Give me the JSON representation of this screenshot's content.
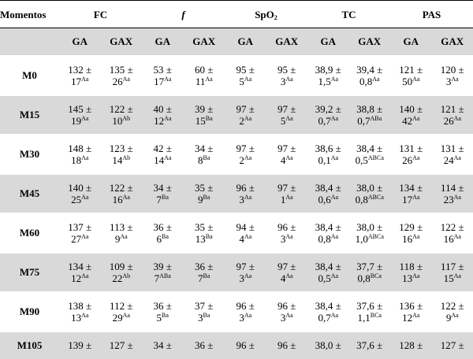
{
  "table": {
    "header": {
      "corner": "Momentos",
      "groups": [
        {
          "text": "FC"
        },
        {
          "text": "f"
        },
        {
          "text": "SpO",
          "sub": "2"
        },
        {
          "text": "TC"
        },
        {
          "text": "PAS"
        }
      ],
      "subheaders": [
        "GA",
        "GAX",
        "GA",
        "GAX",
        "GA",
        "GAX",
        "GA",
        "GAX",
        "GA",
        "GAX"
      ]
    },
    "rows": [
      {
        "label": "M0",
        "cells": [
          [
            "132 ±",
            "17",
            "Aa"
          ],
          [
            "135 ±",
            "26",
            "Aa"
          ],
          [
            "53 ±",
            "17",
            "Aa"
          ],
          [
            "60 ±",
            "11",
            "Aa"
          ],
          [
            "95 ±",
            "5",
            "Aa"
          ],
          [
            "95 ±",
            "3",
            "Aa"
          ],
          [
            "38,9 ±",
            "1,5",
            "Aa"
          ],
          [
            "39,4 ±",
            "0,8",
            "Aa"
          ],
          [
            "121 ±",
            "50",
            "Aa"
          ],
          [
            "120 ±",
            "3",
            "Aa"
          ]
        ]
      },
      {
        "label": "M15",
        "cells": [
          [
            "145 ±",
            "19",
            "Aa"
          ],
          [
            "122 ±",
            "10",
            "Ab"
          ],
          [
            "40 ±",
            "12",
            "Aa"
          ],
          [
            "39 ±",
            "15",
            "Ba"
          ],
          [
            "97 ±",
            "2",
            "Aa"
          ],
          [
            "97 ±",
            "5",
            "Aa"
          ],
          [
            "39,2 ±",
            "0,7",
            "Aa"
          ],
          [
            "38,8 ±",
            "0,7",
            "ABa"
          ],
          [
            "140 ±",
            "42",
            "Aa"
          ],
          [
            "121 ±",
            "26",
            "Aa"
          ]
        ]
      },
      {
        "label": "M30",
        "cells": [
          [
            "148 ±",
            "18",
            "Aa"
          ],
          [
            "123 ±",
            "14",
            "Ab"
          ],
          [
            "42 ±",
            "14",
            "Aa"
          ],
          [
            "34 ±",
            "8",
            "Ba"
          ],
          [
            "97 ±",
            "2",
            "Aa"
          ],
          [
            "97 ±",
            "4",
            "Aa"
          ],
          [
            "38,6 ±",
            "0,1",
            "Aa"
          ],
          [
            "38,4 ±",
            "0,5",
            "ABCa"
          ],
          [
            "131 ±",
            "26",
            "Aa"
          ],
          [
            "131 ±",
            "24",
            "Aa"
          ]
        ]
      },
      {
        "label": "M45",
        "cells": [
          [
            "140 ±",
            "25",
            "Aa"
          ],
          [
            "122 ±",
            "16",
            "Aa"
          ],
          [
            "34 ±",
            "7",
            "Ba"
          ],
          [
            "35 ±",
            "9",
            "Ba"
          ],
          [
            "96 ±",
            "3",
            "Aa"
          ],
          [
            "97 ±",
            "1",
            "Aa"
          ],
          [
            "38,4 ±",
            "0,6",
            "Aa"
          ],
          [
            "38,0 ±",
            "0,8",
            "ABCa"
          ],
          [
            "134 ±",
            "17",
            "Aa"
          ],
          [
            "114 ±",
            "23",
            "Aa"
          ]
        ]
      },
      {
        "label": "M60",
        "cells": [
          [
            "137 ±",
            "27",
            "Aa"
          ],
          [
            "113 ±",
            "9",
            "Aa"
          ],
          [
            "36 ±",
            "6",
            "Ba"
          ],
          [
            "35 ±",
            "13",
            "Ba"
          ],
          [
            "94 ±",
            "4",
            "Aa"
          ],
          [
            "96 ±",
            "3",
            "Aa"
          ],
          [
            "38,4 ±",
            "0,8",
            "Aa"
          ],
          [
            "38,0 ±",
            "1,0",
            "ABCa"
          ],
          [
            "129 ±",
            "16",
            "Aa"
          ],
          [
            "122 ±",
            "16",
            "Aa"
          ]
        ]
      },
      {
        "label": "M75",
        "cells": [
          [
            "134 ±",
            "12",
            "Aa"
          ],
          [
            "109 ±",
            "22",
            "Ab"
          ],
          [
            "39 ±",
            "7",
            "ABa"
          ],
          [
            "36 ±",
            "7",
            "Ba"
          ],
          [
            "97 ±",
            "3",
            "Aa"
          ],
          [
            "97 ±",
            "4",
            "Aa"
          ],
          [
            "38,4 ±",
            "0,5",
            "Aa"
          ],
          [
            "37,7 ±",
            "0,8",
            "BCa"
          ],
          [
            "118 ±",
            "13",
            "Aa"
          ],
          [
            "117 ±",
            "15",
            "Aa"
          ]
        ]
      },
      {
        "label": "M90",
        "cells": [
          [
            "138 ±",
            "13",
            "Aa"
          ],
          [
            "112 ±",
            "29",
            "Aa"
          ],
          [
            "36 ±",
            "5",
            "Ba"
          ],
          [
            "37 ±",
            "3",
            "Ba"
          ],
          [
            "96 ±",
            "3",
            "Aa"
          ],
          [
            "96 ±",
            "3",
            "Aa"
          ],
          [
            "38,4 ±",
            "0,7",
            "Aa"
          ],
          [
            "37,6 ±",
            "1,1",
            "BCa"
          ],
          [
            "136 ±",
            "12",
            "Aa"
          ],
          [
            "122 ±",
            "9",
            "Aa"
          ]
        ]
      },
      {
        "label": "M105",
        "cells": [
          [
            "139 ±"
          ],
          [
            "127 ±"
          ],
          [
            "34 ±"
          ],
          [
            "36 ±"
          ],
          [
            "96 ±"
          ],
          [
            "96 ±"
          ],
          [
            "38,0 ±"
          ],
          [
            "37,6 ±"
          ],
          [
            "128 ±"
          ],
          [
            "127 ±"
          ]
        ]
      }
    ]
  }
}
